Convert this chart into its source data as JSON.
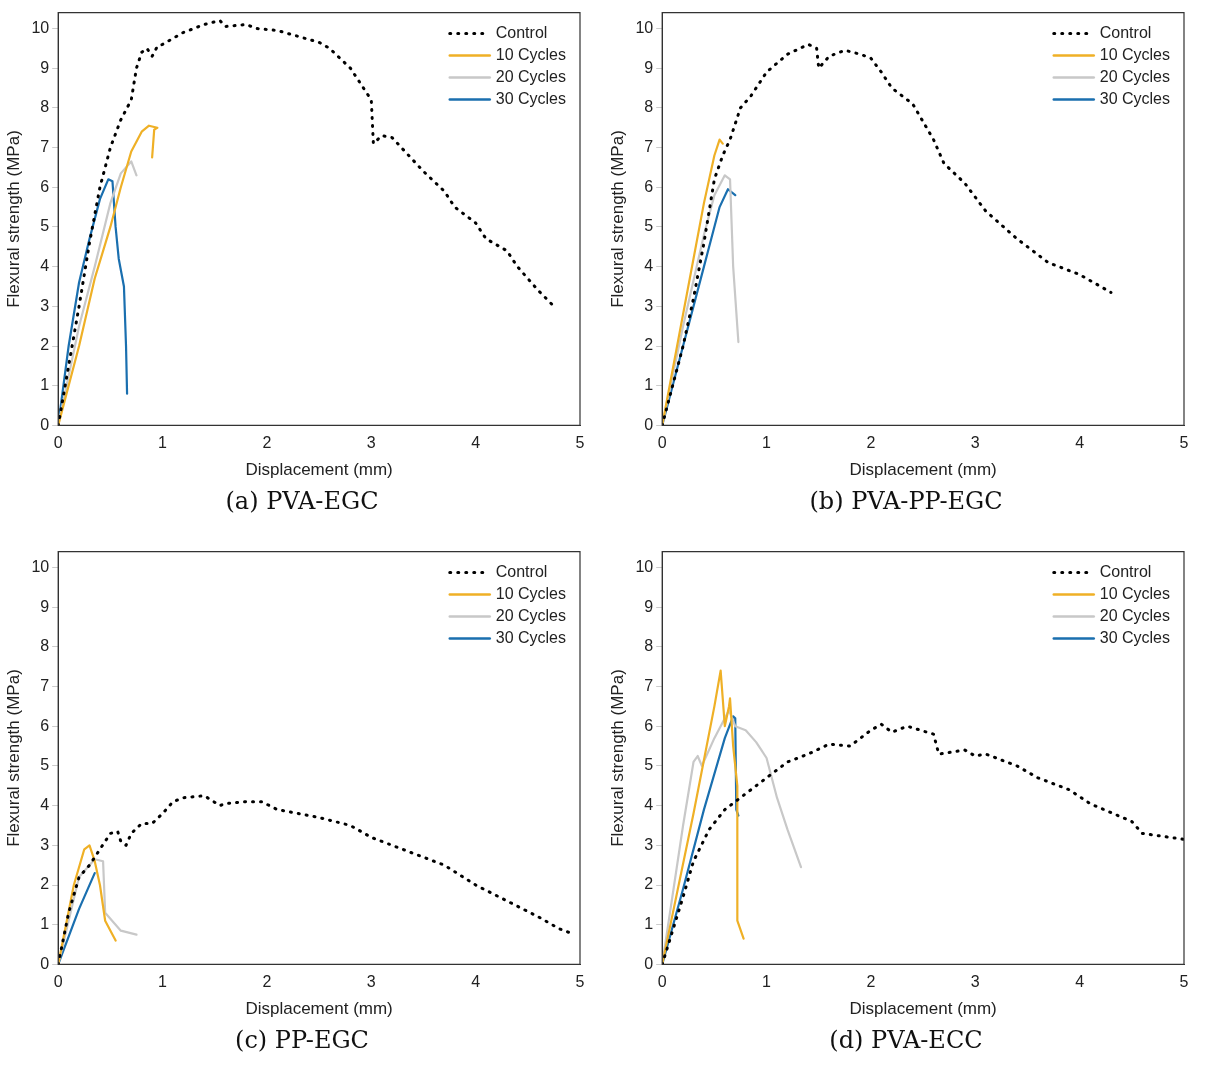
{
  "chart_data": [
    {
      "type": "line",
      "title": "(a) PVA-EGC",
      "xlabel": "Displacement (mm)",
      "ylabel": "Flexural strength (MPa)",
      "xlim": [
        0,
        5
      ],
      "ylim": [
        0,
        10.4
      ],
      "xticks": [
        0,
        1,
        2,
        3,
        4,
        5
      ],
      "yticks": [
        0,
        1,
        2,
        3,
        4,
        5,
        6,
        7,
        8,
        9,
        10
      ],
      "legend": "top right",
      "marker": "none",
      "series": [
        {
          "name": "Control",
          "color": "#000000",
          "line_style": "dotted",
          "x": [
            0,
            0.1,
            0.2,
            0.3,
            0.4,
            0.5,
            0.6,
            0.7,
            0.75,
            0.8,
            0.85,
            0.9,
            0.95,
            1.0,
            1.2,
            1.4,
            1.55,
            1.6,
            1.8,
            1.9,
            2.1,
            2.3,
            2.5,
            2.6,
            2.8,
            3.0,
            3.02,
            3.1,
            3.2,
            3.5,
            3.7,
            3.8,
            4.0,
            4.1,
            4.3,
            4.4,
            4.6,
            4.75
          ],
          "values": [
            0,
            1.5,
            3,
            4.6,
            6,
            7,
            7.7,
            8.2,
            9,
            9.4,
            9.5,
            9.3,
            9.55,
            9.6,
            9.9,
            10.1,
            10.2,
            10.05,
            10.1,
            10,
            9.95,
            9.8,
            9.65,
            9.5,
            9,
            8.2,
            7.1,
            7.3,
            7.25,
            6.4,
            5.9,
            5.5,
            5.1,
            4.7,
            4.4,
            4,
            3.4,
            3
          ]
        },
        {
          "name": "10 Cycles",
          "color": "#efb026",
          "line_style": "solid",
          "x": [
            0,
            0.2,
            0.35,
            0.5,
            0.6,
            0.7,
            0.8,
            0.87,
            0.95,
            0.92,
            0.9
          ],
          "values": [
            0,
            2,
            3.7,
            5,
            6,
            6.9,
            7.4,
            7.55,
            7.5,
            7.45,
            6.75
          ]
        },
        {
          "name": "20 Cycles",
          "color": "#c8c8c8",
          "line_style": "solid",
          "x": [
            0,
            0.2,
            0.35,
            0.5,
            0.6,
            0.7,
            0.75
          ],
          "values": [
            0,
            2.5,
            4,
            5.6,
            6.35,
            6.65,
            6.3
          ]
        },
        {
          "name": "30 Cycles",
          "color": "#1a6faf",
          "line_style": "solid",
          "x": [
            0,
            0.1,
            0.2,
            0.3,
            0.4,
            0.48,
            0.52,
            0.55,
            0.58,
            0.63,
            0.65,
            0.66
          ],
          "values": [
            0,
            2,
            3.6,
            4.7,
            5.7,
            6.2,
            6.15,
            5,
            4.2,
            3.5,
            2,
            0.8
          ]
        }
      ]
    },
    {
      "type": "line",
      "title": "(b) PVA-PP-EGC",
      "xlabel": "Displacement (mm)",
      "ylabel": "Flexural strength (MPa)",
      "xlim": [
        0,
        5
      ],
      "ylim": [
        0,
        10.4
      ],
      "xticks": [
        0,
        1,
        2,
        3,
        4,
        5
      ],
      "yticks": [
        0,
        1,
        2,
        3,
        4,
        5,
        6,
        7,
        8,
        9,
        10
      ],
      "legend": "top right",
      "marker": "none",
      "series": [
        {
          "name": "Control",
          "color": "#000000",
          "line_style": "dotted",
          "x": [
            0,
            0.2,
            0.3,
            0.4,
            0.5,
            0.58,
            0.65,
            0.75,
            0.85,
            1.0,
            1.2,
            1.4,
            1.48,
            1.5,
            1.6,
            1.75,
            1.9,
            2.0,
            2.1,
            2.2,
            2.4,
            2.6,
            2.7,
            2.9,
            3.1,
            3.4,
            3.7,
            4.0,
            4.3
          ],
          "values": [
            0,
            2,
            3.2,
            4.6,
            6.2,
            6.8,
            7.2,
            8,
            8.3,
            8.9,
            9.35,
            9.6,
            9.5,
            9.0,
            9.3,
            9.45,
            9.35,
            9.25,
            8.9,
            8.5,
            8.1,
            7.2,
            6.6,
            6.1,
            5.4,
            4.7,
            4.1,
            3.8,
            3.35
          ]
        },
        {
          "name": "10 Cycles",
          "color": "#efb026",
          "line_style": "solid",
          "x": [
            0,
            0.2,
            0.4,
            0.5,
            0.55,
            0.58
          ],
          "values": [
            0,
            2.8,
            5.6,
            6.8,
            7.2,
            7.1
          ]
        },
        {
          "name": "20 Cycles",
          "color": "#c8c8c8",
          "line_style": "solid",
          "x": [
            0,
            0.2,
            0.4,
            0.5,
            0.6,
            0.65,
            0.68,
            0.73
          ],
          "values": [
            0,
            2.5,
            4.8,
            5.8,
            6.3,
            6.2,
            4,
            2.1
          ]
        },
        {
          "name": "30 Cycles",
          "color": "#1a6faf",
          "line_style": "solid",
          "x": [
            0,
            0.2,
            0.4,
            0.55,
            0.63,
            0.7
          ],
          "values": [
            0,
            2,
            4,
            5.5,
            5.95,
            5.8
          ]
        }
      ]
    },
    {
      "type": "line",
      "title": "(c) PP-EGC",
      "xlabel": "Displacement (mm)",
      "ylabel": "Flexural strength (MPa)",
      "xlim": [
        0,
        5
      ],
      "ylim": [
        0,
        10.4
      ],
      "xticks": [
        0,
        1,
        2,
        3,
        4,
        5
      ],
      "yticks": [
        0,
        1,
        2,
        3,
        4,
        5,
        6,
        7,
        8,
        9,
        10
      ],
      "legend": "top right",
      "marker": "none",
      "series": [
        {
          "name": "Control",
          "color": "#000000",
          "line_style": "dotted",
          "x": [
            0,
            0.1,
            0.2,
            0.3,
            0.4,
            0.5,
            0.57,
            0.6,
            0.65,
            0.7,
            0.8,
            0.9,
            1.0,
            1.1,
            1.2,
            1.4,
            1.55,
            1.6,
            1.8,
            1.95,
            2.1,
            2.5,
            2.8,
            3.0,
            3.4,
            3.7,
            4.0,
            4.3,
            4.6,
            4.8,
            4.9
          ],
          "values": [
            0,
            1.3,
            2.2,
            2.5,
            2.9,
            3.3,
            3.35,
            3.1,
            3.0,
            3.3,
            3.55,
            3.55,
            3.8,
            4.1,
            4.2,
            4.25,
            4.0,
            4.05,
            4.1,
            4.1,
            3.9,
            3.7,
            3.5,
            3.2,
            2.8,
            2.5,
            2.0,
            1.6,
            1.2,
            0.9,
            0.8
          ]
        },
        {
          "name": "10 Cycles",
          "color": "#efb026",
          "line_style": "solid",
          "x": [
            0,
            0.15,
            0.25,
            0.3,
            0.35,
            0.4,
            0.45,
            0.55
          ],
          "values": [
            0,
            2,
            2.9,
            3,
            2.6,
            2,
            1.1,
            0.6
          ]
        },
        {
          "name": "20 Cycles",
          "color": "#c8c8c8",
          "line_style": "solid",
          "x": [
            0,
            0.2,
            0.35,
            0.43,
            0.45,
            0.6,
            0.75
          ],
          "values": [
            0,
            2.2,
            2.65,
            2.6,
            1.3,
            0.85,
            0.75
          ]
        },
        {
          "name": "30 Cycles",
          "color": "#1a6faf",
          "line_style": "solid",
          "x": [
            0,
            0.2,
            0.35
          ],
          "values": [
            0,
            1.4,
            2.3
          ]
        }
      ]
    },
    {
      "type": "line",
      "title": "(d) PVA-ECC",
      "xlabel": "Displacement (mm)",
      "ylabel": "Flexural strength (MPa)",
      "xlim": [
        0,
        5
      ],
      "ylim": [
        0,
        10.4
      ],
      "xticks": [
        0,
        1,
        2,
        3,
        4,
        5
      ],
      "yticks": [
        0,
        1,
        2,
        3,
        4,
        5,
        6,
        7,
        8,
        9,
        10
      ],
      "legend": "top right",
      "marker": "none",
      "series": [
        {
          "name": "Control",
          "color": "#000000",
          "line_style": "dotted",
          "x": [
            0,
            0.2,
            0.3,
            0.45,
            0.6,
            0.8,
            1.0,
            1.2,
            1.4,
            1.6,
            1.8,
            2.0,
            2.1,
            2.2,
            2.35,
            2.6,
            2.65,
            2.9,
            3.0,
            3.1,
            3.4,
            3.6,
            3.9,
            4.1,
            4.5,
            4.6,
            5.0
          ],
          "values": [
            0,
            1.7,
            2.6,
            3.4,
            3.9,
            4.3,
            4.7,
            5.1,
            5.3,
            5.55,
            5.5,
            5.9,
            6.05,
            5.85,
            6.0,
            5.8,
            5.3,
            5.4,
            5.25,
            5.3,
            5.0,
            4.7,
            4.4,
            4.05,
            3.6,
            3.3,
            3.15
          ]
        },
        {
          "name": "10 Cycles",
          "color": "#efb026",
          "line_style": "solid",
          "x": [
            0,
            0.3,
            0.5,
            0.56,
            0.6,
            0.64,
            0.65,
            0.68,
            0.72,
            0.72,
            0.78
          ],
          "values": [
            0,
            3.8,
            6.5,
            7.4,
            6.0,
            6.5,
            6.7,
            5.5,
            4.5,
            1.1,
            0.65
          ]
        },
        {
          "name": "20 Cycles",
          "color": "#c8c8c8",
          "line_style": "solid",
          "x": [
            0,
            0.2,
            0.3,
            0.34,
            0.38,
            0.5,
            0.6,
            0.64,
            0.7,
            0.8,
            0.9,
            1.0,
            1.1,
            1.2,
            1.33
          ],
          "values": [
            0,
            3.5,
            5.1,
            5.25,
            5.0,
            5.7,
            6.2,
            6.4,
            6.0,
            5.9,
            5.6,
            5.2,
            4.2,
            3.4,
            2.45
          ]
        },
        {
          "name": "30 Cycles",
          "color": "#1a6faf",
          "line_style": "solid",
          "x": [
            0,
            0.2,
            0.4,
            0.6,
            0.68,
            0.7,
            0.71,
            0.73
          ],
          "values": [
            0,
            1.9,
            3.9,
            5.7,
            6.25,
            6.2,
            3.9,
            3.75
          ]
        }
      ]
    }
  ]
}
